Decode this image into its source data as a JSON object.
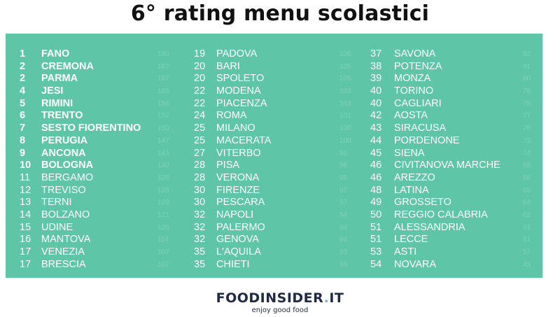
{
  "title": "6° rating menu scolastici",
  "colors": {
    "panel": "#5ec6a6",
    "text": "#ffffff",
    "logo_text": "#1f2a44",
    "logo_dot": "#5ec6a6"
  },
  "columns": [
    [
      {
        "rank": "1",
        "city": "FANO",
        "score": "190",
        "bold": true
      },
      {
        "rank": "2",
        "city": "CREMONA",
        "score": "187",
        "bold": true
      },
      {
        "rank": "2",
        "city": "PARMA",
        "score": "187",
        "bold": true
      },
      {
        "rank": "4",
        "city": "JESI",
        "score": "185",
        "bold": true
      },
      {
        "rank": "5",
        "city": "RIMINI",
        "score": "156",
        "bold": true
      },
      {
        "rank": "6",
        "city": "TRENTO",
        "score": "152",
        "bold": true
      },
      {
        "rank": "7",
        "city": "SESTO FIORENTINO",
        "score": "150",
        "bold": true
      },
      {
        "rank": "8",
        "city": "PERUGIA",
        "score": "147",
        "bold": true
      },
      {
        "rank": "9",
        "city": "ANCONA",
        "score": "143",
        "bold": true
      },
      {
        "rank": "10",
        "city": "BOLOGNA",
        "score": "140",
        "bold": true
      },
      {
        "rank": "11",
        "city": "BERGAMO",
        "score": "128",
        "bold": false
      },
      {
        "rank": "12",
        "city": "TREVISO",
        "score": "125",
        "bold": false
      },
      {
        "rank": "13",
        "city": "TERNI",
        "score": "123",
        "bold": false
      },
      {
        "rank": "14",
        "city": "BOLZANO",
        "score": "121",
        "bold": false
      },
      {
        "rank": "15",
        "city": "UDINE",
        "score": "120",
        "bold": false
      },
      {
        "rank": "16",
        "city": "MANTOVA",
        "score": "114",
        "bold": false
      },
      {
        "rank": "17",
        "city": "VENEZIA",
        "score": "107",
        "bold": false
      },
      {
        "rank": "17",
        "city": "BRESCIA",
        "score": "107",
        "bold": false
      }
    ],
    [
      {
        "rank": "19",
        "city": "PADOVA",
        "score": "106",
        "bold": false
      },
      {
        "rank": "20",
        "city": "BARI",
        "score": "105",
        "bold": false
      },
      {
        "rank": "20",
        "city": "SPOLETO",
        "score": "105",
        "bold": false
      },
      {
        "rank": "22",
        "city": "MODENA",
        "score": "103",
        "bold": false
      },
      {
        "rank": "22",
        "city": "PIACENZA",
        "score": "103",
        "bold": false
      },
      {
        "rank": "24",
        "city": "ROMA",
        "score": "101",
        "bold": false
      },
      {
        "rank": "25",
        "city": "MILANO",
        "score": "100",
        "bold": false
      },
      {
        "rank": "25",
        "city": "MACERATA",
        "score": "100",
        "bold": false
      },
      {
        "rank": "27",
        "city": "VITERBO",
        "score": "99",
        "bold": false
      },
      {
        "rank": "28",
        "city": "PISA",
        "score": "98",
        "bold": false
      },
      {
        "rank": "28",
        "city": "VERONA",
        "score": "98",
        "bold": false
      },
      {
        "rank": "30",
        "city": "FIRENZE",
        "score": "97",
        "bold": false
      },
      {
        "rank": "30",
        "city": "PESCARA",
        "score": "97",
        "bold": false
      },
      {
        "rank": "32",
        "city": "NAPOLI",
        "score": "94",
        "bold": false
      },
      {
        "rank": "32",
        "city": "PALERMO",
        "score": "94",
        "bold": false
      },
      {
        "rank": "32",
        "city": "GENOVA",
        "score": "94",
        "bold": false
      },
      {
        "rank": "35",
        "city": "L'AQUILA",
        "score": "93",
        "bold": false
      },
      {
        "rank": "35",
        "city": "CHIETI",
        "score": "93",
        "bold": false
      }
    ],
    [
      {
        "rank": "37",
        "city": "SAVONA",
        "score": "92",
        "bold": false
      },
      {
        "rank": "38",
        "city": "POTENZA",
        "score": "91",
        "bold": false
      },
      {
        "rank": "39",
        "city": "MONZA",
        "score": "80",
        "bold": false
      },
      {
        "rank": "40",
        "city": "TORINO",
        "score": "78",
        "bold": false
      },
      {
        "rank": "40",
        "city": "CAGLIARI",
        "score": "78",
        "bold": false
      },
      {
        "rank": "42",
        "city": "AOSTA",
        "score": "77",
        "bold": false
      },
      {
        "rank": "43",
        "city": "SIRACUSA",
        "score": "76",
        "bold": false
      },
      {
        "rank": "44",
        "city": "PORDENONE",
        "score": "75",
        "bold": false
      },
      {
        "rank": "45",
        "city": "SIENA",
        "score": "74",
        "bold": false
      },
      {
        "rank": "46",
        "city": "CIVITANOVA MARCHE",
        "score": "68",
        "bold": false
      },
      {
        "rank": "46",
        "city": "AREZZO",
        "score": "68",
        "bold": false
      },
      {
        "rank": "48",
        "city": "LATINA",
        "score": "65",
        "bold": false
      },
      {
        "rank": "49",
        "city": "GROSSETO",
        "score": "64",
        "bold": false
      },
      {
        "rank": "50",
        "city": "REGGIO CALABRIA",
        "score": "62",
        "bold": false
      },
      {
        "rank": "51",
        "city": "ALESSANDRIA",
        "score": "61",
        "bold": false
      },
      {
        "rank": "51",
        "city": "LECCE",
        "score": "61",
        "bold": false
      },
      {
        "rank": "53",
        "city": "ASTI",
        "score": "57",
        "bold": false
      },
      {
        "rank": "54",
        "city": "NOVARA",
        "score": "43",
        "bold": false
      }
    ]
  ],
  "logo": {
    "main": "FOODINSIDER",
    "dot": ".",
    "suffix": "IT",
    "tagline": "enjoy good food"
  }
}
